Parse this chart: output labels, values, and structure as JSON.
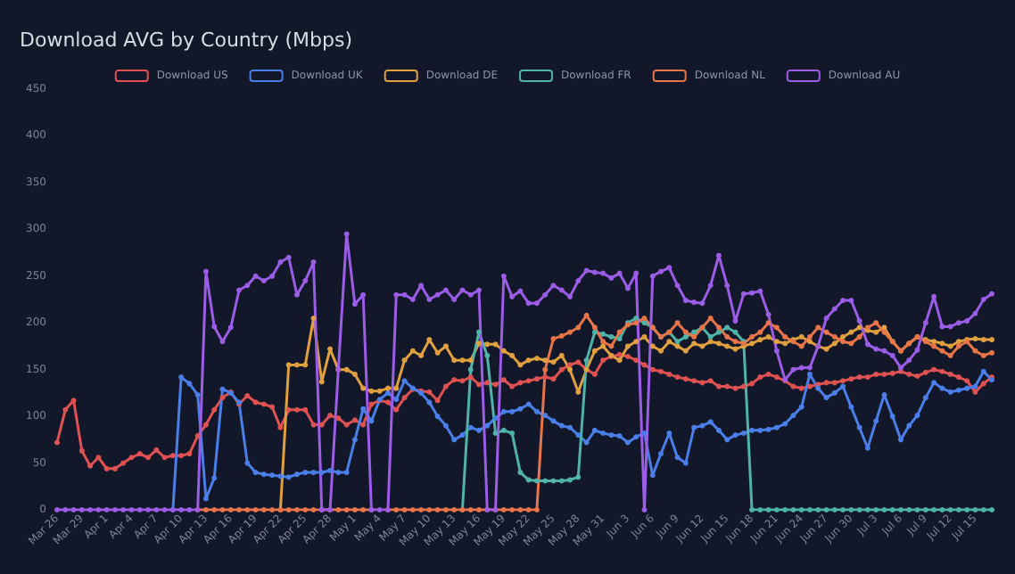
{
  "chart_data": {
    "type": "line",
    "title": "Download AVG by Country (Mbps)",
    "categories": [
      "Mar 26",
      null,
      null,
      "Mar 29",
      null,
      null,
      "Apr 1",
      null,
      null,
      "Apr 4",
      null,
      null,
      "Apr 7",
      null,
      null,
      "Apr 10",
      null,
      null,
      "Apr 13",
      null,
      null,
      "Apr 16",
      null,
      null,
      "Apr 19",
      null,
      null,
      "Apr 22",
      null,
      null,
      "Apr 25",
      null,
      null,
      "Apr 28",
      null,
      null,
      "May 1",
      null,
      null,
      "May 4",
      null,
      null,
      "May 7",
      null,
      null,
      "May 10",
      null,
      null,
      "May 13",
      null,
      null,
      "May 16",
      null,
      null,
      "May 19",
      null,
      null,
      "May 22",
      null,
      null,
      "May 25",
      null,
      null,
      "May 28",
      null,
      null,
      "May 31",
      null,
      null,
      "Jun 3",
      null,
      null,
      "Jun 6",
      null,
      null,
      "Jun 9",
      null,
      null,
      "Jun 12",
      null,
      null,
      "Jun 15",
      null,
      null,
      "Jun 18",
      null,
      null,
      "Jun 21",
      null,
      null,
      "Jun 24",
      null,
      null,
      "Jun 27",
      null,
      null,
      "Jun 30",
      null,
      null,
      "Jul 3",
      null,
      null,
      "Jul 6",
      null,
      null,
      "Jul 9",
      null,
      null,
      "Jul 12",
      null,
      null,
      "Jul 15",
      null,
      null
    ],
    "series": [
      {
        "name": "Download US",
        "color": "#e05252",
        "values": [
          72,
          107,
          117,
          63,
          47,
          56,
          44,
          44,
          50,
          56,
          60,
          56,
          64,
          56,
          58,
          58,
          60,
          79,
          91,
          107,
          120,
          126,
          113,
          122,
          115,
          113,
          110,
          88,
          107,
          107,
          107,
          91,
          91,
          101,
          98,
          91,
          96,
          91,
          113,
          117,
          115,
          107,
          120,
          129,
          127,
          126,
          117,
          132,
          139,
          138,
          142,
          134,
          136,
          134,
          139,
          132,
          136,
          138,
          140,
          142,
          140,
          150,
          155,
          158,
          150,
          145,
          160,
          164,
          166,
          164,
          160,
          155,
          150,
          148,
          145,
          142,
          140,
          138,
          136,
          138,
          132,
          132,
          130,
          132,
          135,
          142,
          145,
          142,
          138,
          132,
          130,
          132,
          134,
          136,
          136,
          138,
          140,
          142,
          142,
          145,
          145,
          146,
          148,
          145,
          143,
          147,
          150,
          148,
          145,
          142,
          138,
          126,
          135,
          142
        ]
      },
      {
        "name": "Download UK",
        "color": "#4a7ee8",
        "values": [
          null,
          null,
          null,
          null,
          null,
          null,
          null,
          null,
          null,
          null,
          null,
          null,
          null,
          null,
          0,
          142,
          135,
          123,
          12,
          34,
          129,
          125,
          115,
          50,
          40,
          38,
          37,
          36,
          35,
          38,
          40,
          40,
          40,
          42,
          40,
          40,
          75,
          108,
          95,
          118,
          125,
          118,
          138,
          130,
          125,
          115,
          100,
          90,
          75,
          80,
          88,
          85,
          90,
          98,
          105,
          105,
          108,
          113,
          105,
          101,
          95,
          90,
          88,
          80,
          72,
          85,
          82,
          80,
          79,
          72,
          78,
          82,
          37,
          60,
          82,
          56,
          50,
          88,
          90,
          94,
          85,
          75,
          80,
          82,
          85,
          85,
          86,
          88,
          92,
          101,
          110,
          145,
          130,
          120,
          125,
          132,
          110,
          88,
          66,
          95,
          123,
          100,
          75,
          90,
          101,
          120,
          136,
          130,
          126,
          128,
          130,
          132,
          148,
          139
        ]
      },
      {
        "name": "Download DE",
        "color": "#e0a040",
        "values": [
          null,
          null,
          null,
          null,
          null,
          null,
          null,
          null,
          null,
          null,
          null,
          null,
          null,
          null,
          null,
          null,
          null,
          null,
          null,
          null,
          null,
          null,
          null,
          null,
          null,
          null,
          null,
          0,
          155,
          155,
          155,
          205,
          137,
          172,
          150,
          150,
          145,
          130,
          127,
          127,
          130,
          130,
          160,
          170,
          165,
          182,
          168,
          175,
          160,
          160,
          160,
          178,
          177,
          177,
          170,
          165,
          155,
          160,
          162,
          160,
          158,
          165,
          150,
          126,
          150,
          170,
          175,
          165,
          160,
          175,
          180,
          185,
          175,
          170,
          180,
          175,
          170,
          178,
          175,
          180,
          178,
          175,
          172,
          175,
          178,
          182,
          185,
          180,
          178,
          182,
          185,
          180,
          175,
          172,
          178,
          185,
          190,
          195,
          192,
          190,
          195,
          180,
          170,
          178,
          185,
          182,
          180,
          178,
          175,
          180,
          182,
          183,
          182,
          182
        ]
      },
      {
        "name": "Download FR",
        "color": "#4fb3a8",
        "values": [
          null,
          null,
          null,
          null,
          null,
          null,
          null,
          null,
          null,
          null,
          null,
          null,
          null,
          null,
          null,
          null,
          null,
          null,
          null,
          null,
          null,
          null,
          null,
          null,
          null,
          null,
          null,
          null,
          null,
          null,
          null,
          null,
          null,
          null,
          null,
          null,
          null,
          null,
          null,
          null,
          null,
          null,
          null,
          null,
          null,
          null,
          null,
          null,
          null,
          0,
          150,
          190,
          165,
          82,
          85,
          82,
          40,
          32,
          31,
          31,
          31,
          31,
          32,
          35,
          160,
          190,
          188,
          185,
          183,
          200,
          205,
          200,
          195,
          185,
          190,
          180,
          185,
          190,
          195,
          185,
          190,
          195,
          190,
          180,
          0,
          0,
          0,
          0,
          0,
          0,
          0,
          0,
          0,
          0,
          0,
          0,
          0,
          0,
          0,
          0,
          0,
          0,
          0,
          0,
          0,
          0,
          0,
          0,
          0,
          0,
          0,
          0,
          0,
          0
        ]
      },
      {
        "name": "Download NL",
        "color": "#e8744a",
        "values": [
          null,
          null,
          null,
          null,
          null,
          null,
          null,
          null,
          null,
          null,
          null,
          null,
          null,
          null,
          null,
          null,
          null,
          0,
          0,
          0,
          0,
          0,
          0,
          0,
          0,
          0,
          0,
          0,
          0,
          0,
          0,
          0,
          0,
          0,
          0,
          0,
          0,
          0,
          0,
          null,
          0,
          0,
          0,
          0,
          0,
          0,
          0,
          0,
          0,
          0,
          0,
          0,
          0,
          0,
          0,
          0,
          0,
          0,
          0,
          150,
          183,
          186,
          190,
          195,
          208,
          195,
          180,
          175,
          190,
          198,
          200,
          205,
          195,
          185,
          190,
          200,
          190,
          185,
          195,
          205,
          195,
          185,
          180,
          178,
          185,
          190,
          200,
          195,
          185,
          180,
          175,
          185,
          195,
          190,
          185,
          180,
          178,
          185,
          195,
          200,
          190,
          180,
          170,
          178,
          185,
          180,
          175,
          170,
          165,
          175,
          180,
          170,
          165,
          168
        ]
      },
      {
        "name": "Download AU",
        "color": "#9b5ce6",
        "values": [
          0,
          0,
          0,
          0,
          0,
          0,
          0,
          0,
          0,
          0,
          0,
          0,
          0,
          0,
          0,
          0,
          0,
          0,
          255,
          196,
          180,
          195,
          235,
          240,
          250,
          245,
          250,
          265,
          270,
          230,
          245,
          265,
          0,
          0,
          150,
          295,
          220,
          230,
          0,
          0,
          0,
          230,
          230,
          225,
          240,
          225,
          230,
          235,
          225,
          235,
          230,
          235,
          0,
          0,
          250,
          228,
          234,
          221,
          221,
          230,
          240,
          235,
          228,
          245,
          256,
          254,
          253,
          248,
          253,
          237,
          253,
          0,
          250,
          255,
          259,
          240,
          224,
          222,
          221,
          240,
          272,
          240,
          202,
          231,
          232,
          234,
          209,
          170,
          139,
          150,
          152,
          152,
          175,
          205,
          215,
          224,
          224,
          202,
          177,
          172,
          170,
          165,
          152,
          160,
          171,
          200,
          228,
          196,
          196,
          200,
          202,
          210,
          225,
          231
        ]
      }
    ],
    "ylim": [
      0,
      450
    ],
    "yticks": [
      0,
      50,
      100,
      150,
      200,
      250,
      300,
      350,
      400,
      450
    ],
    "legend": "top",
    "marker": "circle"
  }
}
